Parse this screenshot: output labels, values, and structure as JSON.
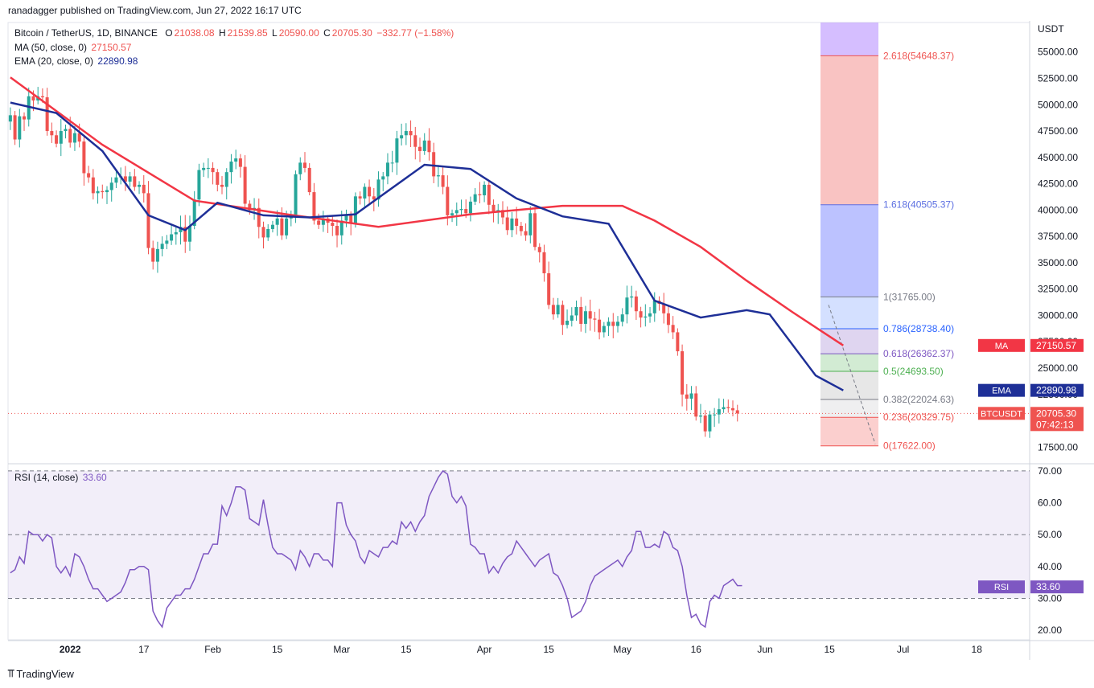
{
  "header": {
    "text": "ranadagger published on TradingView.com, Jun 27, 2022 16:17 UTC"
  },
  "legend": {
    "symbol": "Bitcoin / TetherUS, 1D, BINANCE",
    "ohlc": {
      "o_label": "O",
      "o": "21038.08",
      "h_label": "H",
      "h": "21539.85",
      "l_label": "L",
      "l": "20590.00",
      "c_label": "C",
      "c": "20705.30",
      "chg": "−332.77 (−1.58%)"
    },
    "ma": {
      "label": "MA (50, close, 0)",
      "value": "27150.57"
    },
    "ema": {
      "label": "EMA (20, close, 0)",
      "value": "22890.98"
    },
    "rsi": {
      "label": "RSI (14, close)",
      "value": "33.60"
    }
  },
  "footer": {
    "brand": "TradingView"
  },
  "colors": {
    "up": "#26a69a",
    "down": "#ef5350",
    "ma": "#f23645",
    "ema": "#1e2f97",
    "rsi": "#7e57c2",
    "fib_blue": "#5b6ee1",
    "fib_purple": "#b388ff"
  },
  "chart_data": [
    {
      "type": "candlestick",
      "title": "Bitcoin / TetherUS, 1D, BINANCE",
      "y_axis_unit": "USDT",
      "ylim": [
        16000,
        57800
      ],
      "y_ticks": [
        "17500.00",
        "20000.00",
        "22500.00",
        "25000.00",
        "27500.00",
        "30000.00",
        "32500.00",
        "35000.00",
        "37500.00",
        "40000.00",
        "42500.00",
        "45000.00",
        "47500.00",
        "50000.00",
        "52500.00",
        "55000.00"
      ],
      "x_ticks": [
        "2022",
        "17",
        "Feb",
        "15",
        "Mar",
        "15",
        "Apr",
        "15",
        "May",
        "16",
        "Jun",
        "15",
        "Jul",
        "18"
      ],
      "x_tick_days": [
        13,
        29,
        44,
        58,
        72,
        86,
        103,
        117,
        133,
        149,
        164,
        178,
        194,
        210
      ],
      "first_day": "2021-12-19",
      "close_series": [
        49000,
        46700,
        48900,
        48600,
        50800,
        50400,
        50800,
        50700,
        47500,
        47100,
        46300,
        47500,
        47700,
        46400,
        47300,
        46500,
        43500,
        43100,
        41600,
        41800,
        41700,
        41900,
        42600,
        43100,
        43200,
        42700,
        43200,
        42200,
        42400,
        41600,
        36400,
        35100,
        36300,
        36800,
        37100,
        37700,
        37900,
        38400,
        37000,
        38500,
        41000,
        43800,
        44000,
        44000,
        43600,
        42400,
        42200,
        43600,
        44600,
        44900,
        44100,
        40600,
        40000,
        40200,
        38400,
        37400,
        38200,
        38600,
        39200,
        37600,
        39200,
        39400,
        43400,
        44500,
        44000,
        41700,
        39000,
        38600,
        39200,
        38800,
        38500,
        37600,
        39000,
        39500,
        38700,
        41300,
        41100,
        42200,
        41300,
        41000,
        42900,
        43200,
        44500,
        44500,
        46800,
        47100,
        47500,
        47100,
        46000,
        45600,
        46600,
        45500,
        43200,
        43300,
        42200,
        39500,
        39700,
        40000,
        40100,
        39700,
        40800,
        41500,
        41400,
        42400,
        40500,
        39800,
        40000,
        39300,
        38100,
        39200,
        38500,
        38000,
        37600,
        39700,
        36500,
        36000,
        34000,
        31000,
        30100,
        31000,
        29100,
        29500,
        30000,
        30800,
        29200,
        30400,
        29700,
        29600,
        28400,
        29000,
        29400,
        29000,
        29400,
        30100,
        31700,
        31800,
        30400,
        29800,
        29900,
        30200,
        31400,
        31100,
        30200,
        29100,
        28400,
        26600,
        22500,
        22100,
        22600,
        20400,
        20500,
        19000,
        20600,
        20600,
        21100,
        21300,
        21200,
        21000,
        20705
      ],
      "ma": {
        "name": "MA (50, close, 0)",
        "value": 27150.57,
        "pts": [
          [
            0,
            52600
          ],
          [
            20,
            46200
          ],
          [
            40,
            40900
          ],
          [
            60,
            39600
          ],
          [
            80,
            38400
          ],
          [
            100,
            39600
          ],
          [
            120,
            40400
          ],
          [
            133,
            40400
          ],
          [
            140,
            39000
          ],
          [
            150,
            36500
          ],
          [
            160,
            33300
          ],
          [
            170,
            30300
          ],
          [
            181,
            27150.57
          ]
        ]
      },
      "ema": {
        "name": "EMA (20, close, 0)",
        "value": 22890.98,
        "pts": [
          [
            0,
            50200
          ],
          [
            10,
            49200
          ],
          [
            20,
            45600
          ],
          [
            30,
            39500
          ],
          [
            38,
            38100
          ],
          [
            45,
            40700
          ],
          [
            55,
            39500
          ],
          [
            65,
            39300
          ],
          [
            75,
            39600
          ],
          [
            90,
            44300
          ],
          [
            100,
            43900
          ],
          [
            110,
            41100
          ],
          [
            120,
            39400
          ],
          [
            130,
            38700
          ],
          [
            140,
            31400
          ],
          [
            150,
            29800
          ],
          [
            160,
            30500
          ],
          [
            165,
            30100
          ],
          [
            175,
            24300
          ],
          [
            181,
            22890.98
          ]
        ]
      },
      "last_price": "20705.30",
      "countdown": "07:42:13",
      "ticker": "BTCUSDT",
      "fib": {
        "x_range": [
          164,
          172
        ],
        "levels": [
          {
            "label": "0(17622.00)",
            "price": 17622
          },
          {
            "label": "0.236(20329.75)",
            "price": 20329.75
          },
          {
            "label": "0.382(22024.63)",
            "price": 22024.63
          },
          {
            "label": "0.5(24693.50)",
            "price": 24693.5
          },
          {
            "label": "0.618(26362.37)",
            "price": 26362.37
          },
          {
            "label": "0.786(28738.40)",
            "price": 28738.4
          },
          {
            "label": "1(31765.00)",
            "price": 31765
          },
          {
            "label": "1.618(40505.37)",
            "price": 40505.37
          },
          {
            "label": "2.618(54648.37)",
            "price": 54648.37
          }
        ]
      }
    },
    {
      "type": "line",
      "title": "RSI (14, close)",
      "ylim": [
        17,
        72
      ],
      "y_ticks": [
        "20.00",
        "30.00",
        "40.00",
        "50.00",
        "60.00",
        "70.00"
      ],
      "bands": [
        30,
        50,
        70
      ],
      "series": [
        {
          "name": "RSI (14, close)",
          "values": [
            38,
            39,
            43,
            41,
            51,
            50,
            50,
            48,
            50,
            49,
            40,
            38,
            40,
            37,
            44,
            43,
            40,
            36,
            33,
            33,
            31,
            29,
            30,
            31,
            32,
            35,
            39,
            39,
            40,
            40,
            39,
            26,
            23,
            21,
            27,
            29,
            31,
            31,
            33,
            33,
            36,
            40,
            44,
            44,
            47,
            47,
            59,
            56,
            60,
            65,
            65,
            64,
            55,
            54,
            53,
            61,
            53,
            46,
            44,
            44,
            43,
            42,
            39,
            45,
            43,
            40,
            44,
            44,
            42,
            42,
            40,
            60,
            60,
            53,
            50,
            48,
            43,
            41,
            45,
            44,
            43,
            46,
            46,
            48,
            47,
            54,
            52,
            54,
            51,
            54,
            56,
            62,
            65,
            68,
            70,
            69,
            62,
            60,
            62,
            59,
            47,
            46,
            44,
            44,
            38,
            40,
            38,
            41,
            43,
            44,
            48,
            46,
            44,
            42,
            40,
            42,
            43,
            44,
            38,
            37,
            34,
            30,
            24,
            25,
            26,
            29,
            34,
            37,
            38,
            39,
            40,
            41,
            42,
            40,
            43,
            45,
            51,
            51,
            46,
            46,
            47,
            46,
            51,
            50,
            46,
            45,
            40,
            31,
            24,
            25,
            22,
            21,
            29,
            31,
            30,
            34,
            35,
            36,
            34,
            34
          ]
        }
      ]
    }
  ]
}
